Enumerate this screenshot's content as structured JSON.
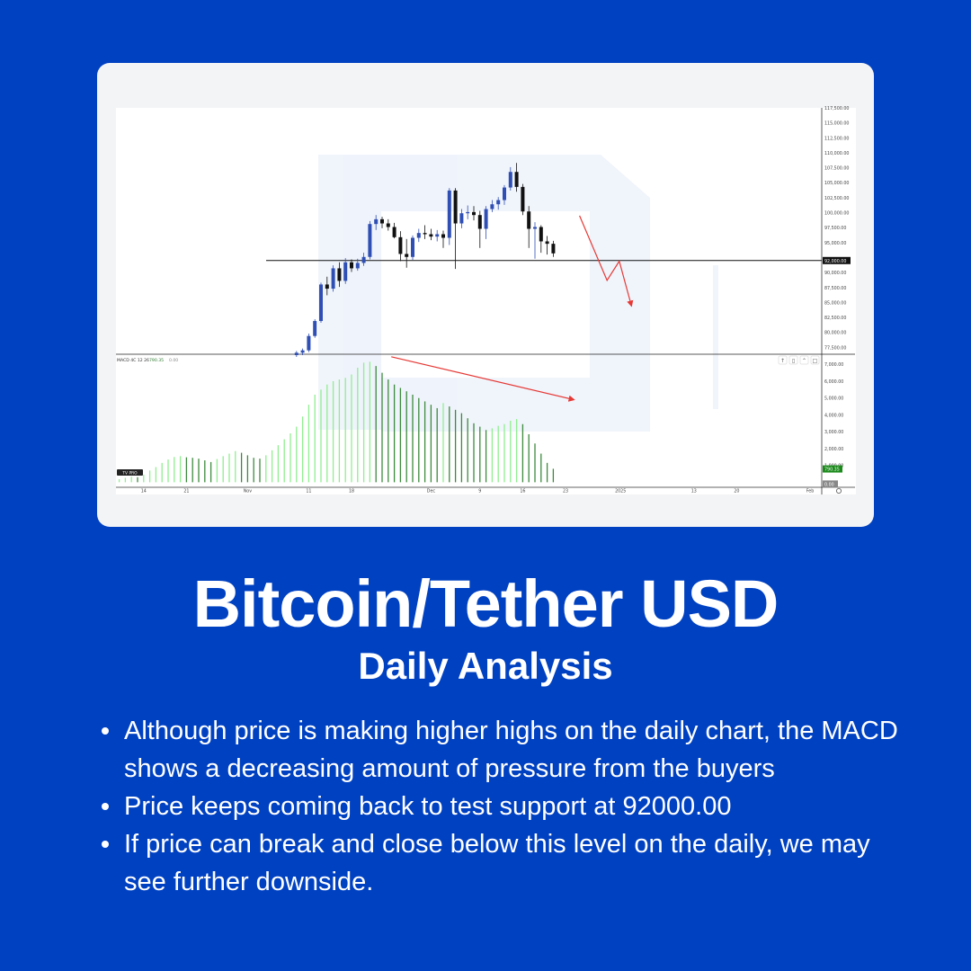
{
  "title": "Bitcoin/Tether USD",
  "subtitle": "Daily Analysis",
  "bullets": [
    "Although price is making higher highs on the daily chart, the MACD shows a decreasing amount of pressure from the buyers",
    "Price keeps coming back to test support at 92000.00",
    "If price can break and close below this level on the daily, we may see further downside."
  ],
  "colors": {
    "background": "#0041c2",
    "card": "#f3f4f6",
    "bull_candle": "#2f4fb5",
    "bear_candle": "#111111",
    "histogram_rising": "#90ee90",
    "histogram_falling": "#3c8a3c",
    "arrow": "#e53935",
    "support_line": "#111111"
  },
  "chart_data": [
    {
      "type": "candlestick",
      "title": "",
      "ylim": [
        76500,
        117500
      ],
      "y_ticks": [
        {
          "value": 117500,
          "label": "117,500.00"
        },
        {
          "value": 115000,
          "label": "115,000.00"
        },
        {
          "value": 112500,
          "label": "112,500.00"
        },
        {
          "value": 110000,
          "label": "110,000.00"
        },
        {
          "value": 107500,
          "label": "107,500.00"
        },
        {
          "value": 105000,
          "label": "105,000.00"
        },
        {
          "value": 102500,
          "label": "102,500.00"
        },
        {
          "value": 100000,
          "label": "100,000.00"
        },
        {
          "value": 97500,
          "label": "97,500.00"
        },
        {
          "value": 95000,
          "label": "95,000.00"
        },
        {
          "value": 90000,
          "label": "90,000.00"
        },
        {
          "value": 87500,
          "label": "87,500.00"
        },
        {
          "value": 85000,
          "label": "85,000.00"
        },
        {
          "value": 82500,
          "label": "82,500.00"
        },
        {
          "value": 80000,
          "label": "80,000.00"
        },
        {
          "value": 77500,
          "label": "77,500.00"
        }
      ],
      "support": {
        "value": 92000,
        "label": "92,000.00"
      },
      "x_ticks": [
        {
          "index": 4,
          "label": "14"
        },
        {
          "index": 11,
          "label": "21"
        },
        {
          "index": 21,
          "label": "Nov"
        },
        {
          "index": 31,
          "label": "11"
        },
        {
          "index": 38,
          "label": "18"
        },
        {
          "index": 51,
          "label": "Dec"
        },
        {
          "index": 59,
          "label": "9"
        },
        {
          "index": 66,
          "label": "16"
        },
        {
          "index": 73,
          "label": "23"
        },
        {
          "index": 82,
          "label": "2025"
        },
        {
          "index": 94,
          "label": "13"
        },
        {
          "index": 101,
          "label": "20"
        },
        {
          "index": 113,
          "label": "Feb"
        }
      ],
      "candles_start_index": 29,
      "candles": [
        {
          "o": 76200,
          "h": 76900,
          "l": 75900,
          "c": 76600
        },
        {
          "o": 76600,
          "h": 77300,
          "l": 76200,
          "c": 77000
        },
        {
          "o": 77000,
          "h": 79800,
          "l": 76700,
          "c": 79400
        },
        {
          "o": 79400,
          "h": 82200,
          "l": 79100,
          "c": 81900
        },
        {
          "o": 81900,
          "h": 88300,
          "l": 81600,
          "c": 88000
        },
        {
          "o": 88000,
          "h": 89300,
          "l": 86200,
          "c": 87300
        },
        {
          "o": 87300,
          "h": 91200,
          "l": 86800,
          "c": 90700
        },
        {
          "o": 90700,
          "h": 91700,
          "l": 87600,
          "c": 88600
        },
        {
          "o": 88600,
          "h": 92400,
          "l": 88100,
          "c": 91700
        },
        {
          "o": 91700,
          "h": 92200,
          "l": 90100,
          "c": 90700
        },
        {
          "o": 90700,
          "h": 92300,
          "l": 90300,
          "c": 91600
        },
        {
          "o": 91600,
          "h": 93300,
          "l": 91100,
          "c": 92600
        },
        {
          "o": 92600,
          "h": 98600,
          "l": 92200,
          "c": 98100
        },
        {
          "o": 98100,
          "h": 99600,
          "l": 97100,
          "c": 98900
        },
        {
          "o": 98900,
          "h": 99300,
          "l": 97400,
          "c": 98200
        },
        {
          "o": 98200,
          "h": 98900,
          "l": 97000,
          "c": 97600
        },
        {
          "o": 97600,
          "h": 98300,
          "l": 95700,
          "c": 95900
        },
        {
          "o": 95900,
          "h": 96900,
          "l": 91900,
          "c": 93100
        },
        {
          "o": 93100,
          "h": 95600,
          "l": 90800,
          "c": 92600
        },
        {
          "o": 92600,
          "h": 96200,
          "l": 92100,
          "c": 95800
        },
        {
          "o": 95800,
          "h": 97300,
          "l": 95100,
          "c": 96600
        },
        {
          "o": 96600,
          "h": 97900,
          "l": 95600,
          "c": 96400
        },
        {
          "o": 96400,
          "h": 97300,
          "l": 95400,
          "c": 96000
        },
        {
          "o": 96000,
          "h": 97100,
          "l": 95200,
          "c": 96400
        },
        {
          "o": 96400,
          "h": 97000,
          "l": 94100,
          "c": 95800
        },
        {
          "o": 95800,
          "h": 104100,
          "l": 94600,
          "c": 103700
        },
        {
          "o": 103700,
          "h": 104100,
          "l": 90600,
          "c": 98200
        },
        {
          "o": 98200,
          "h": 100600,
          "l": 97400,
          "c": 99900
        },
        {
          "o": 99900,
          "h": 101200,
          "l": 98900,
          "c": 100100
        },
        {
          "o": 100100,
          "h": 101100,
          "l": 98700,
          "c": 99600
        },
        {
          "o": 99600,
          "h": 100300,
          "l": 94100,
          "c": 97300
        },
        {
          "o": 97300,
          "h": 101100,
          "l": 95600,
          "c": 100600
        },
        {
          "o": 100600,
          "h": 102100,
          "l": 100100,
          "c": 101400
        },
        {
          "o": 101400,
          "h": 102600,
          "l": 100500,
          "c": 102100
        },
        {
          "o": 102100,
          "h": 104600,
          "l": 101300,
          "c": 104200
        },
        {
          "o": 104200,
          "h": 107600,
          "l": 103700,
          "c": 106800
        },
        {
          "o": 106800,
          "h": 108300,
          "l": 103500,
          "c": 104300
        },
        {
          "o": 104300,
          "h": 104800,
          "l": 99600,
          "c": 100200
        },
        {
          "o": 100200,
          "h": 101100,
          "l": 94100,
          "c": 97300
        },
        {
          "o": 97300,
          "h": 98400,
          "l": 92300,
          "c": 97600
        },
        {
          "o": 97600,
          "h": 97900,
          "l": 93300,
          "c": 95200
        },
        {
          "o": 95200,
          "h": 96100,
          "l": 93000,
          "c": 94800
        },
        {
          "o": 94800,
          "h": 95300,
          "l": 92600,
          "c": 93200
        }
      ]
    },
    {
      "type": "bar",
      "title": "MACD 4C 12 26",
      "legend_value": "790.35",
      "legend_zero": "0.00",
      "current_value_label": "790.35",
      "zero_label": "0.00",
      "ylim": [
        -300,
        7600
      ],
      "y_ticks": [
        {
          "value": 7000,
          "label": "7,000.00"
        },
        {
          "value": 6000,
          "label": "6,000.00"
        },
        {
          "value": 5000,
          "label": "5,000.00"
        },
        {
          "value": 4000,
          "label": "4,000.00"
        },
        {
          "value": 3000,
          "label": "3,000.00"
        },
        {
          "value": 2000,
          "label": "2,000.00"
        },
        {
          "value": 1000,
          "label": "1,000.00"
        }
      ],
      "start_index": 0,
      "values": [
        180,
        260,
        330,
        300,
        450,
        700,
        900,
        1150,
        1350,
        1500,
        1550,
        1480,
        1450,
        1400,
        1300,
        1200,
        1380,
        1550,
        1700,
        1850,
        1750,
        1600,
        1450,
        1400,
        1600,
        1900,
        2200,
        2550,
        2900,
        3300,
        3900,
        4600,
        5200,
        5500,
        5800,
        6000,
        6100,
        6200,
        6400,
        6800,
        7100,
        7150,
        6900,
        6500,
        6100,
        5800,
        5600,
        5400,
        5200,
        5000,
        4800,
        4600,
        4400,
        4700,
        4500,
        4300,
        4100,
        3800,
        3500,
        3300,
        3100,
        3200,
        3350,
        3450,
        3650,
        3750,
        3450,
        2850,
        2300,
        1700,
        1150,
        800
      ]
    }
  ],
  "annotations": [
    {
      "type": "arrow",
      "pane": 0,
      "points": [
        [
          75.3,
          99500
        ],
        [
          79.8,
          88700
        ],
        [
          81.8,
          91900
        ],
        [
          83.8,
          84400
        ]
      ]
    },
    {
      "type": "arrow",
      "pane": 1,
      "points": [
        [
          44.5,
          7450
        ],
        [
          74.4,
          4900
        ]
      ]
    }
  ],
  "branding": {
    "tradingview_badge": "TV PRO"
  }
}
